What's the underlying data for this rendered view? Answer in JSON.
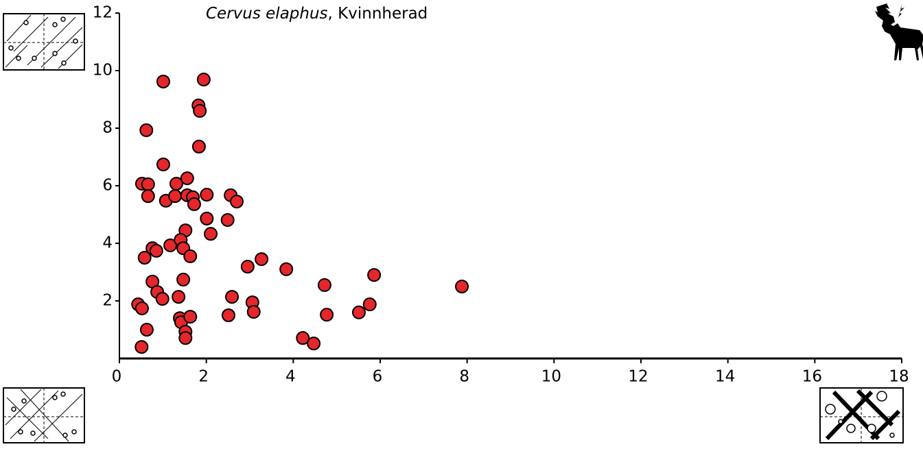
{
  "chart_data": {
    "type": "scatter",
    "title": [
      "Cervus elaphus",
      ", Kvinnherad"
    ],
    "x": [
      1.01,
      1.94,
      1.82,
      1.85,
      0.62,
      1.83,
      1.01,
      0.52,
      0.66,
      1.31,
      1.56,
      0.66,
      1.07,
      1.28,
      1.56,
      1.69,
      1.72,
      2.01,
      2.56,
      2.7,
      2.01,
      2.49,
      2.1,
      1.52,
      0.76,
      0.85,
      1.17,
      1.41,
      1.47,
      1.63,
      0.58,
      2.95,
      3.27,
      3.84,
      0.76,
      1.47,
      4.72,
      5.86,
      7.88,
      0.87,
      0.99,
      1.36,
      2.59,
      0.43,
      0.52,
      3.06,
      3.09,
      2.51,
      1.39,
      1.42,
      1.63,
      4.77,
      5.76,
      5.51,
      0.63,
      1.52,
      1.52,
      4.22,
      4.47,
      0.51
    ],
    "values": [
      9.62,
      9.69,
      8.79,
      8.6,
      7.93,
      7.36,
      6.74,
      6.07,
      6.05,
      6.07,
      6.26,
      5.64,
      5.48,
      5.64,
      5.67,
      5.6,
      5.36,
      5.69,
      5.67,
      5.45,
      4.86,
      4.81,
      4.33,
      4.45,
      3.83,
      3.74,
      3.93,
      4.12,
      3.83,
      3.55,
      3.5,
      3.19,
      3.45,
      3.1,
      2.67,
      2.74,
      2.55,
      2.9,
      2.5,
      2.31,
      2.07,
      2.14,
      2.14,
      1.88,
      1.74,
      1.95,
      1.62,
      1.5,
      1.4,
      1.26,
      1.45,
      1.52,
      1.88,
      1.6,
      1.0,
      0.93,
      0.71,
      0.71,
      0.52,
      0.4
    ],
    "color": "#e5262b",
    "xlim": [
      0,
      18
    ],
    "xticks": [
      0,
      2,
      4,
      6,
      8,
      10,
      12,
      14,
      16,
      18
    ],
    "ylim": [
      0,
      12
    ],
    "yticks": [
      2,
      4,
      6,
      8,
      10,
      12
    ]
  }
}
